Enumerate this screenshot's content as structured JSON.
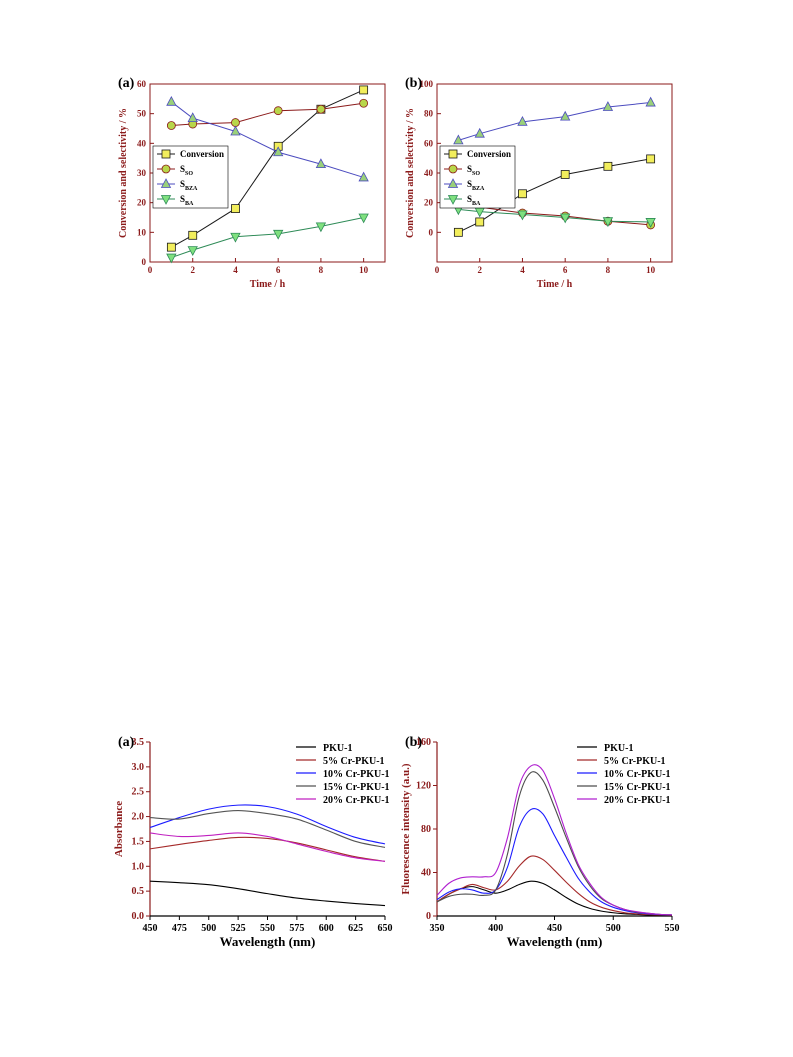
{
  "chart_data": [
    {
      "panel": "(a)",
      "type": "line",
      "xlabel": "Time / h",
      "ylabel": "Conversion and selectivity / %",
      "xlim": [
        0,
        11
      ],
      "ylim": [
        0,
        60
      ],
      "xticks": [
        0,
        2,
        4,
        6,
        8,
        10
      ],
      "yticks": [
        0,
        10,
        20,
        30,
        40,
        50,
        60
      ],
      "legend_position": "left",
      "x": [
        1,
        2,
        4,
        6,
        8,
        10
      ],
      "series": [
        {
          "name": "Conversion",
          "sub": "",
          "color": "#1a1a1a",
          "fill": "#f2ee5c",
          "marker": "square",
          "values": [
            5,
            9,
            18,
            39,
            51.5,
            58
          ]
        },
        {
          "name": "S",
          "sub": "SO",
          "color": "#8b1a1a",
          "fill": "#b8d64a",
          "marker": "circle",
          "values": [
            46,
            46.5,
            47,
            51,
            51.5,
            53.5
          ]
        },
        {
          "name": "S",
          "sub": "BZA",
          "color": "#4b4bbf",
          "fill": "#9ad07a",
          "marker": "triangle-up",
          "values": [
            54,
            48.5,
            44,
            37,
            33,
            28.5
          ]
        },
        {
          "name": "S",
          "sub": "BA",
          "color": "#2e8b57",
          "fill": "#7fe07f",
          "marker": "triangle-down",
          "values": [
            1.5,
            4,
            8.5,
            9.5,
            12,
            15
          ]
        }
      ]
    },
    {
      "panel": "(b)",
      "type": "line",
      "xlabel": "Time / h",
      "ylabel": "Conversion and selectivity / %",
      "xlim": [
        0,
        11
      ],
      "ylim": [
        -20,
        100
      ],
      "xticks": [
        0,
        2,
        4,
        6,
        8,
        10
      ],
      "yticks": [
        0,
        20,
        40,
        60,
        80,
        100
      ],
      "legend_position": "left",
      "x": [
        1,
        2,
        4,
        6,
        8,
        10
      ],
      "series": [
        {
          "name": "Conversion",
          "sub": "",
          "color": "#1a1a1a",
          "fill": "#f2ee5c",
          "marker": "square",
          "values": [
            0,
            7,
            26,
            39,
            44.5,
            49.5
          ]
        },
        {
          "name": "S",
          "sub": "SO",
          "color": "#8b1a1a",
          "fill": "#b8d64a",
          "marker": "circle",
          "values": [
            21.5,
            17,
            13,
            11,
            7.5,
            5
          ]
        },
        {
          "name": "S",
          "sub": "BZA",
          "color": "#4b4bbf",
          "fill": "#9ad07a",
          "marker": "triangle-up",
          "values": [
            62,
            66.5,
            74.5,
            78,
            84.5,
            87.5
          ]
        },
        {
          "name": "S",
          "sub": "BA",
          "color": "#2e8b57",
          "fill": "#7fe07f",
          "marker": "triangle-down",
          "values": [
            15.5,
            14,
            12,
            10,
            7.5,
            7
          ]
        }
      ]
    },
    {
      "panel": "(a)",
      "type": "line",
      "xlabel": "Wavelength (nm)",
      "ylabel": "Absorbance",
      "xlim": [
        450,
        650
      ],
      "ylim": [
        0,
        3.5
      ],
      "xticks": [
        450,
        475,
        500,
        525,
        550,
        575,
        600,
        625,
        650
      ],
      "yticks": [
        "0.0",
        "0.5",
        "1.0",
        "1.5",
        "2.0",
        "2.5",
        "3.0",
        "3.5"
      ],
      "legend_position": "top-right",
      "x": [
        450,
        475,
        500,
        525,
        550,
        575,
        600,
        625,
        650
      ],
      "series": [
        {
          "name": "PKU-1",
          "color": "#000000",
          "values": [
            0.7,
            0.67,
            0.63,
            0.55,
            0.45,
            0.36,
            0.3,
            0.25,
            0.21
          ]
        },
        {
          "name": "5% Cr-PKU-1",
          "color": "#a52a2a",
          "values": [
            1.35,
            1.44,
            1.52,
            1.58,
            1.56,
            1.47,
            1.33,
            1.19,
            1.1
          ]
        },
        {
          "name": "10% Cr-PKU-1",
          "color": "#1c1cff",
          "values": [
            1.78,
            1.98,
            2.15,
            2.23,
            2.2,
            2.05,
            1.8,
            1.58,
            1.45
          ]
        },
        {
          "name": "15% Cr-PKU-1",
          "color": "#555555",
          "values": [
            1.98,
            1.95,
            2.06,
            2.12,
            2.06,
            1.95,
            1.73,
            1.5,
            1.38
          ]
        },
        {
          "name": "20% Cr-PKU-1",
          "color": "#c020c0",
          "values": [
            1.67,
            1.6,
            1.62,
            1.67,
            1.6,
            1.45,
            1.3,
            1.17,
            1.1
          ]
        }
      ]
    },
    {
      "panel": "(b)",
      "type": "line",
      "xlabel": "Wavelength (nm)",
      "ylabel": "Fluorescence intensity (a.u.)",
      "xlim": [
        350,
        550
      ],
      "ylim": [
        0,
        160
      ],
      "xticks": [
        350,
        400,
        450,
        500,
        550
      ],
      "yticks": [
        0,
        40,
        80,
        120,
        160
      ],
      "legend_position": "top-right",
      "x": [
        350,
        360,
        370,
        380,
        390,
        400,
        410,
        420,
        430,
        440,
        450,
        460,
        470,
        480,
        490,
        500,
        510,
        520,
        530,
        540,
        550
      ],
      "series": [
        {
          "name": "PKU-1",
          "color": "#000000",
          "values": [
            13,
            20,
            25,
            27,
            24,
            21,
            24,
            29,
            32,
            30,
            24,
            17,
            11,
            7,
            4.5,
            3,
            2,
            1.5,
            1,
            0.8,
            0.5
          ]
        },
        {
          "name": "5%  Cr-PKU-1",
          "color": "#a52a2a",
          "values": [
            13,
            20,
            25,
            29,
            26,
            24,
            32,
            46,
            55,
            52,
            42,
            31,
            21,
            13,
            8,
            5,
            3,
            2,
            1.3,
            1,
            0.7
          ]
        },
        {
          "name": "10% Cr-PKU-1",
          "color": "#1c1cff",
          "values": [
            15,
            22,
            25,
            24,
            21,
            24,
            45,
            82,
            98,
            94,
            74,
            54,
            35,
            22,
            13,
            8,
            5,
            3,
            2,
            1.3,
            1
          ]
        },
        {
          "name": "15% Cr-PKU-1",
          "color": "#4d4d4d",
          "values": [
            13,
            18,
            20,
            20,
            19,
            24,
            57,
            110,
            132,
            125,
            100,
            72,
            46,
            28,
            16,
            10,
            6,
            3.5,
            2.5,
            1.5,
            1
          ]
        },
        {
          "name": "20% Cr-PKU-1",
          "color": "#b020d0",
          "values": [
            19,
            30,
            35,
            36,
            36,
            40,
            72,
            120,
            138,
            134,
            108,
            76,
            48,
            30,
            17,
            10,
            6,
            4,
            2.5,
            1.5,
            1
          ]
        }
      ]
    }
  ]
}
